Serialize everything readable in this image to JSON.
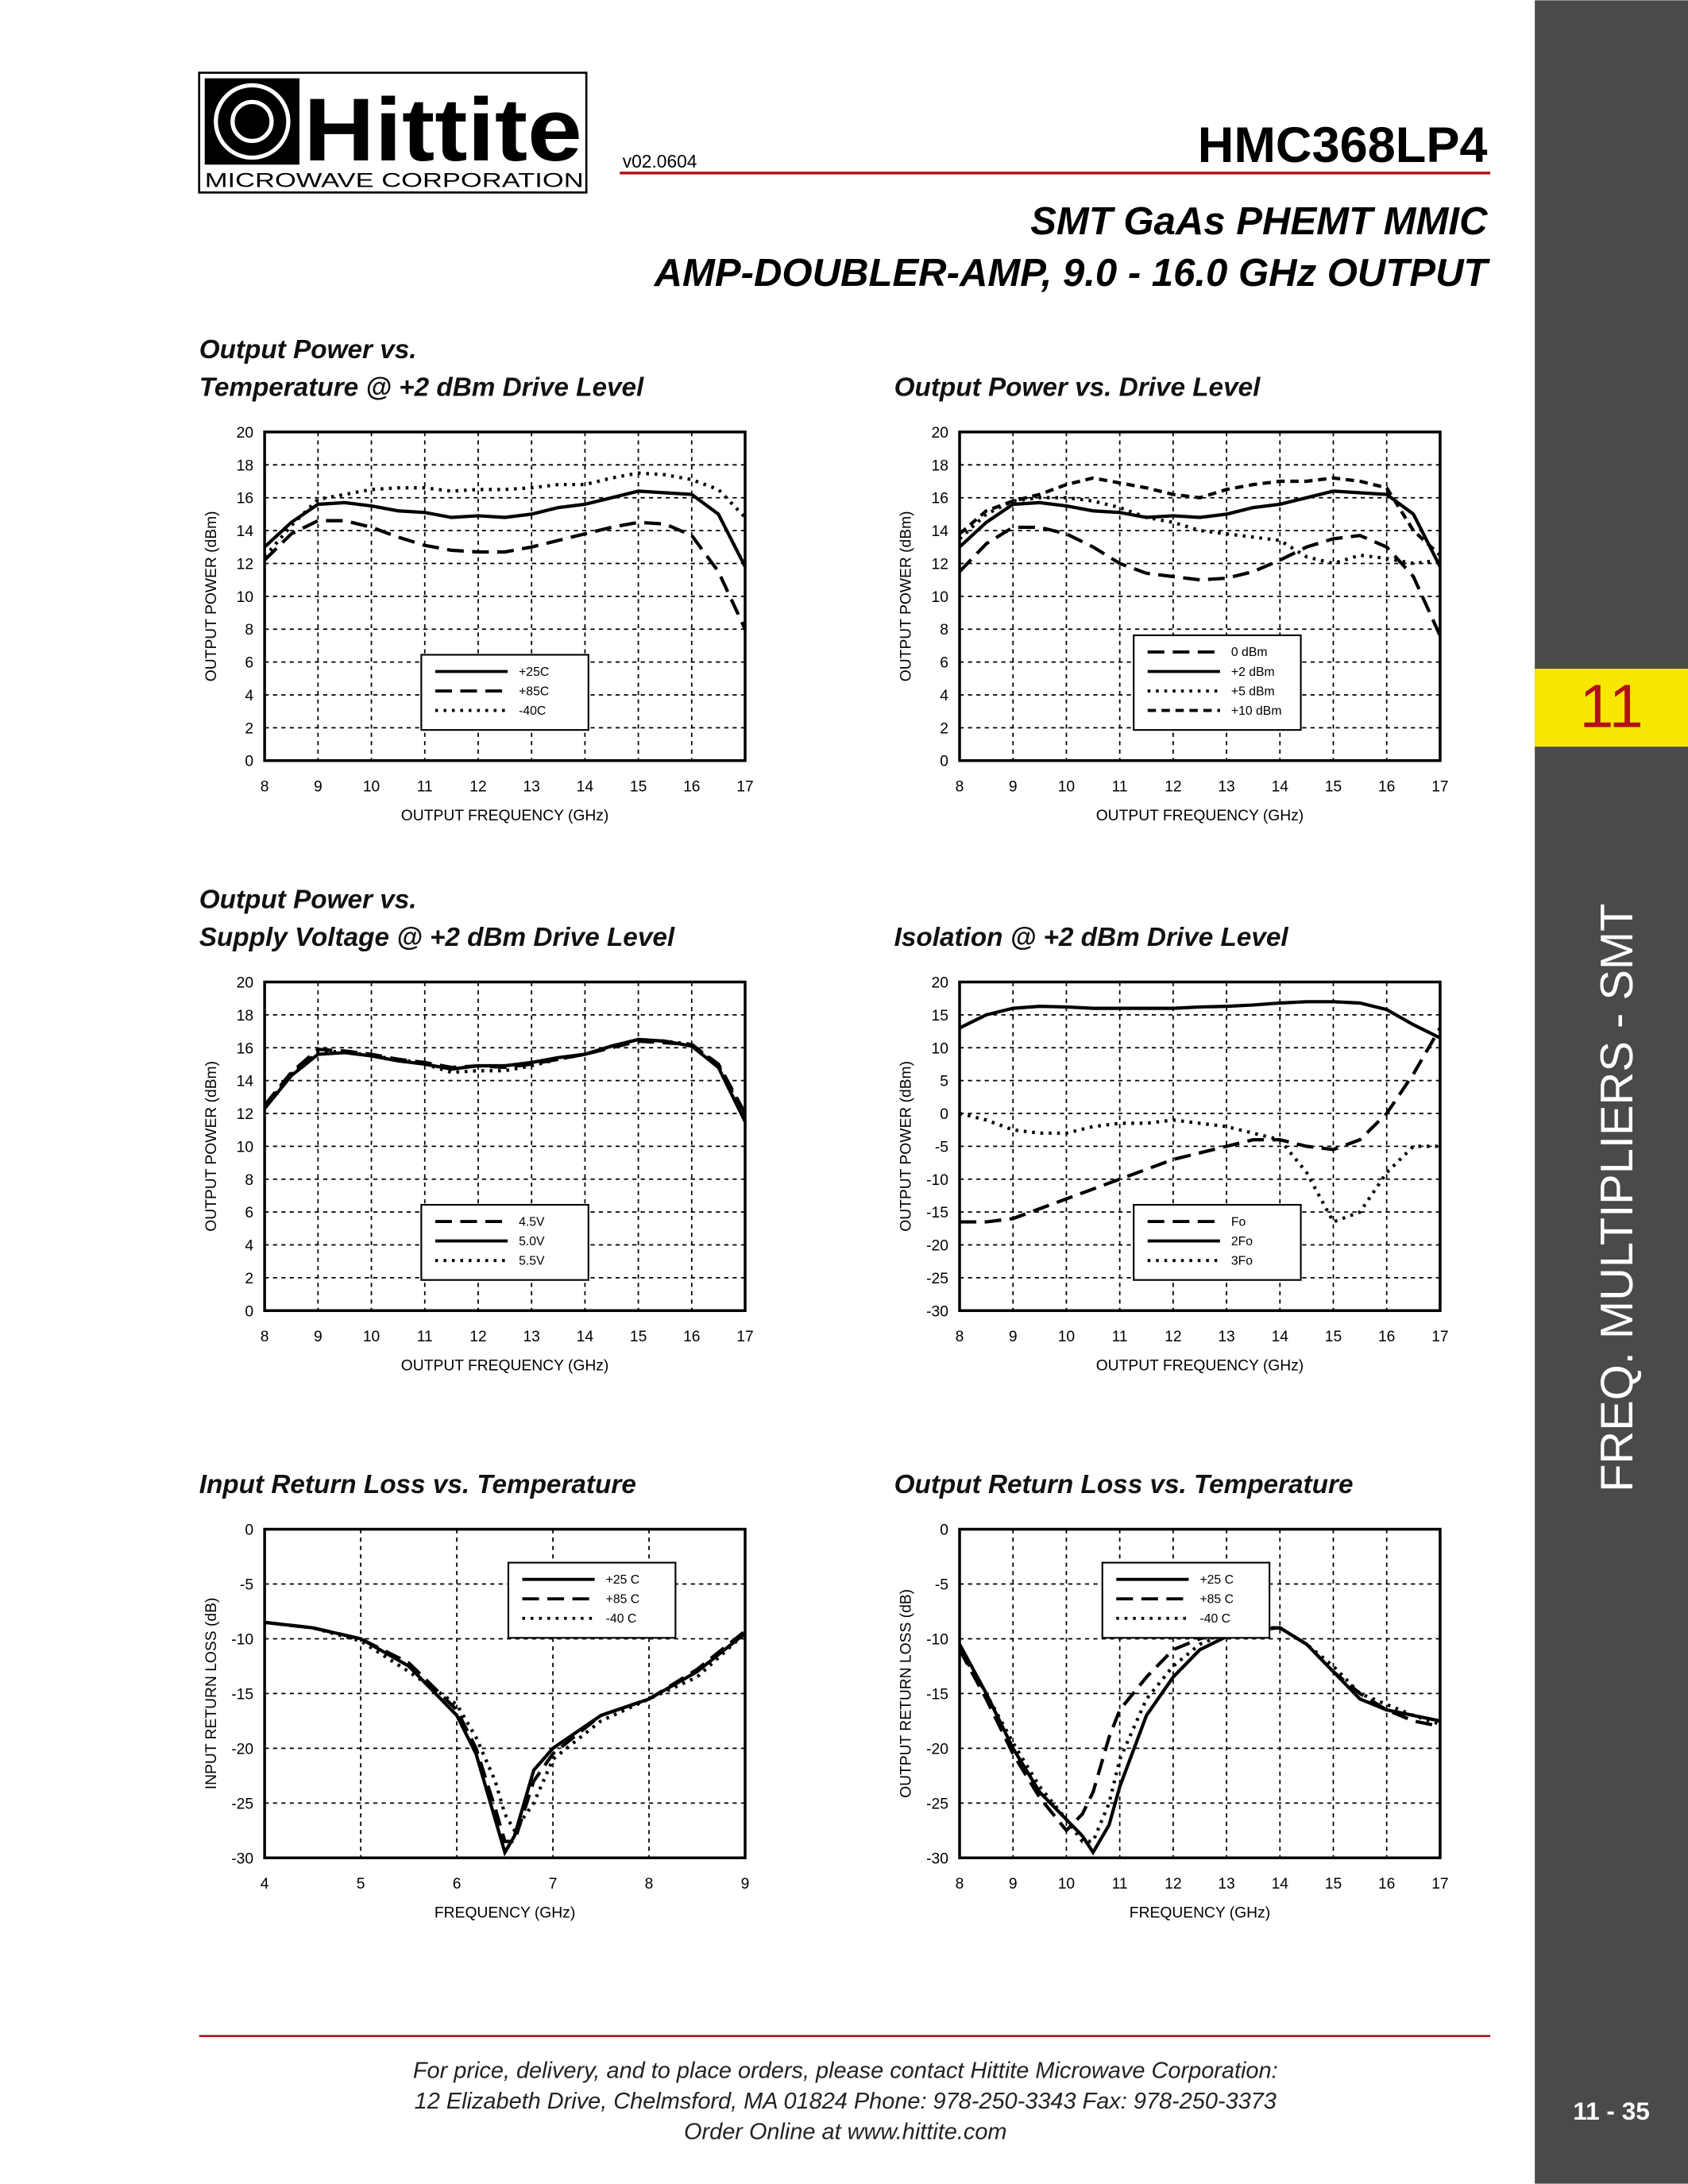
{
  "header": {
    "logo": "Hittite",
    "company": "MICROWAVE CORPORATION",
    "version": "v02.0604",
    "part": "HMC368LP4",
    "subtitle": [
      "SMT GaAs PHEMT MMIC",
      "AMP-DOUBLER-AMP, 9.0 - 16.0 GHz OUTPUT"
    ]
  },
  "sidebar": {
    "section": "11",
    "label": "FREQ. MULTIPLIERS - SMT",
    "page": "11 - 35"
  },
  "footer": [
    "For price, delivery, and to place orders, please contact Hittite Microwave Corporation:",
    "12 Elizabeth Drive, Chelmsford, MA 01824 Phone: 978-250-3343  Fax: 978-250-3373",
    "Order Online at www.hittite.com"
  ],
  "chart_data": [
    {
      "type": "line",
      "title": [
        "Output Power vs.",
        "Temperature @ +2 dBm Drive Level"
      ],
      "xlabel": "OUTPUT FREQUENCY (GHz)",
      "ylabel": "OUTPUT POWER (dBm)",
      "xlim": [
        8,
        17
      ],
      "xticks": [
        8,
        9,
        10,
        11,
        12,
        13,
        14,
        15,
        16,
        17
      ],
      "ylim": [
        0,
        20
      ],
      "yticks": [
        0,
        2,
        4,
        6,
        8,
        10,
        12,
        14,
        16,
        18,
        20
      ],
      "grid": true,
      "legend": "bottom-center",
      "x": [
        8,
        8.5,
        9,
        9.5,
        10,
        10.5,
        11,
        11.5,
        12,
        12.5,
        13,
        13.5,
        14,
        14.5,
        15,
        15.5,
        16,
        16.5,
        17
      ],
      "series": [
        {
          "name": "+25C",
          "color": "#000000",
          "dash": "solid",
          "values": [
            13,
            14.5,
            15.6,
            15.7,
            15.5,
            15.2,
            15.1,
            14.8,
            14.9,
            14.8,
            15.0,
            15.4,
            15.6,
            16.0,
            16.4,
            16.3,
            16.2,
            15.0,
            11.8
          ]
        },
        {
          "name": "+85C",
          "color": "#000000",
          "dash": "long-dash",
          "values": [
            12.2,
            13.8,
            14.6,
            14.6,
            14.2,
            13.6,
            13.1,
            12.8,
            12.7,
            12.7,
            13.0,
            13.4,
            13.8,
            14.2,
            14.5,
            14.4,
            13.7,
            11.5,
            8.0
          ]
        },
        {
          "name": "-40C",
          "color": "#000000",
          "dash": "dotted",
          "values": [
            12.4,
            14.3,
            15.9,
            16.2,
            16.5,
            16.6,
            16.6,
            16.4,
            16.5,
            16.5,
            16.6,
            16.8,
            16.8,
            17.2,
            17.5,
            17.4,
            17.1,
            16.5,
            14.8
          ]
        }
      ]
    },
    {
      "type": "line",
      "title": [
        "Output Power vs. Drive Level"
      ],
      "xlabel": "OUTPUT FREQUENCY (GHz)",
      "ylabel": "OUTPUT POWER (dBm)",
      "xlim": [
        8,
        17
      ],
      "xticks": [
        8,
        9,
        10,
        11,
        12,
        13,
        14,
        15,
        16,
        17
      ],
      "ylim": [
        0,
        20
      ],
      "yticks": [
        0,
        2,
        4,
        6,
        8,
        10,
        12,
        14,
        16,
        18,
        20
      ],
      "grid": true,
      "legend": "bottom-right",
      "x": [
        8,
        8.5,
        9,
        9.5,
        10,
        10.5,
        11,
        11.5,
        12,
        12.5,
        13,
        13.5,
        14,
        14.5,
        15,
        15.5,
        16,
        16.5,
        17
      ],
      "series": [
        {
          "name": "0 dBm",
          "color": "#000000",
          "dash": "long-dash",
          "values": [
            11.5,
            13.2,
            14.2,
            14.2,
            13.8,
            13.0,
            12.0,
            11.4,
            11.2,
            11.0,
            11.1,
            11.5,
            12.2,
            13.0,
            13.5,
            13.7,
            13.0,
            11.2,
            7.6
          ]
        },
        {
          "name": "+2 dBm",
          "color": "#000000",
          "dash": "solid",
          "values": [
            13,
            14.5,
            15.6,
            15.7,
            15.5,
            15.2,
            15.1,
            14.8,
            14.9,
            14.8,
            15.0,
            15.4,
            15.6,
            16.0,
            16.4,
            16.3,
            16.2,
            15.0,
            11.8
          ]
        },
        {
          "name": "+5 dBm",
          "color": "#000000",
          "dash": "dotted",
          "values": [
            13.5,
            15.0,
            15.8,
            16.0,
            16.0,
            15.8,
            15.4,
            14.8,
            14.5,
            14.0,
            13.8,
            13.6,
            13.4,
            12.4,
            12.0,
            12.5,
            12.3,
            12.0,
            12.2
          ]
        },
        {
          "name": "+10 dBm",
          "color": "#000000",
          "dash": "short-dash",
          "values": [
            13.8,
            15.2,
            15.8,
            16.2,
            16.8,
            17.2,
            16.9,
            16.6,
            16.2,
            16.0,
            16.5,
            16.8,
            17.0,
            17.0,
            17.2,
            17.0,
            16.6,
            14.0,
            12.5
          ]
        }
      ]
    },
    {
      "type": "line",
      "title": [
        "Output Power vs.",
        "Supply Voltage @ +2 dBm Drive Level"
      ],
      "xlabel": "OUTPUT FREQUENCY (GHz)",
      "ylabel": "OUTPUT POWER (dBm)",
      "xlim": [
        8,
        17
      ],
      "xticks": [
        8,
        9,
        10,
        11,
        12,
        13,
        14,
        15,
        16,
        17
      ],
      "ylim": [
        0,
        20
      ],
      "yticks": [
        0,
        2,
        4,
        6,
        8,
        10,
        12,
        14,
        16,
        18,
        20
      ],
      "grid": true,
      "legend": "bottom-center",
      "x": [
        8,
        8.5,
        9,
        9.5,
        10,
        10.5,
        11,
        11.5,
        12,
        12.5,
        13,
        13.5,
        14,
        14.5,
        15,
        15.5,
        16,
        16.5,
        17
      ],
      "series": [
        {
          "name": "4.5V",
          "color": "#000000",
          "dash": "long-dash",
          "values": [
            12.5,
            14.5,
            15.9,
            15.8,
            15.6,
            15.3,
            15.1,
            14.8,
            14.9,
            14.8,
            15.0,
            15.3,
            15.6,
            16.0,
            16.4,
            16.3,
            16.2,
            15.0,
            12.0
          ]
        },
        {
          "name": "5.0V",
          "color": "#000000",
          "dash": "solid",
          "values": [
            12.3,
            14.3,
            15.6,
            15.7,
            15.5,
            15.2,
            15.0,
            14.7,
            14.9,
            14.9,
            15.1,
            15.4,
            15.6,
            16.1,
            16.5,
            16.4,
            16.1,
            14.8,
            11.5
          ]
        },
        {
          "name": "5.5V",
          "color": "#000000",
          "dash": "dotted",
          "values": [
            12.4,
            14.4,
            15.7,
            15.8,
            15.5,
            15.3,
            15.0,
            14.5,
            14.6,
            14.6,
            14.9,
            15.3,
            15.6,
            16.1,
            16.5,
            16.4,
            16.2,
            14.9,
            11.8
          ]
        }
      ]
    },
    {
      "type": "line",
      "title": [
        "Isolation @ +2 dBm Drive Level"
      ],
      "xlabel": "OUTPUT FREQUENCY (GHz)",
      "ylabel": "OUTPUT POWER (dBm)",
      "xlim": [
        8,
        17
      ],
      "xticks": [
        8,
        9,
        10,
        11,
        12,
        13,
        14,
        15,
        16,
        17
      ],
      "ylim": [
        -30,
        20
      ],
      "yticks": [
        -30,
        -25,
        -20,
        -15,
        -10,
        -5,
        0,
        5,
        10,
        15,
        20
      ],
      "grid": true,
      "legend": "bottom-right",
      "x": [
        8,
        8.5,
        9,
        9.5,
        10,
        10.5,
        11,
        11.5,
        12,
        12.5,
        13,
        13.5,
        14,
        14.5,
        15,
        15.5,
        16,
        16.5,
        17
      ],
      "series": [
        {
          "name": "Fo",
          "color": "#000000",
          "dash": "long-dash",
          "values": [
            -16.5,
            -16.5,
            -16.0,
            -14.5,
            -13.0,
            -11.5,
            -10.0,
            -8.5,
            -7.0,
            -6.0,
            -5.0,
            -4.0,
            -4.0,
            -5.0,
            -5.5,
            -4.0,
            0.0,
            6.0,
            13.0
          ]
        },
        {
          "name": "2Fo",
          "color": "#000000",
          "dash": "solid",
          "values": [
            13.0,
            15.0,
            16.0,
            16.3,
            16.2,
            16.0,
            16.0,
            16.0,
            16.0,
            16.2,
            16.3,
            16.5,
            16.8,
            17.0,
            17.0,
            16.8,
            15.8,
            13.5,
            11.5
          ]
        },
        {
          "name": "3Fo",
          "color": "#000000",
          "dash": "dotted",
          "values": [
            0,
            -1.0,
            -2.5,
            -3.0,
            -3.0,
            -2.0,
            -1.5,
            -1.5,
            -1.0,
            -1.5,
            -2.0,
            -3.0,
            -4.0,
            -9.0,
            -16.5,
            -15.0,
            -9.0,
            -5.0,
            -5.0
          ]
        }
      ]
    },
    {
      "type": "line",
      "title": [
        "Input Return Loss vs. Temperature"
      ],
      "xlabel": "FREQUENCY (GHz)",
      "ylabel": "INPUT RETURN LOSS (dB)",
      "xlim": [
        4,
        9
      ],
      "xticks": [
        4,
        5,
        6,
        7,
        8,
        9
      ],
      "ylim": [
        -30,
        0
      ],
      "yticks": [
        -30,
        -25,
        -20,
        -15,
        -10,
        -5,
        0
      ],
      "grid": true,
      "legend": "top-right",
      "x": [
        4,
        4.5,
        5,
        5.5,
        6,
        6.2,
        6.4,
        6.5,
        6.6,
        6.8,
        7,
        7.5,
        8,
        8.5,
        9
      ],
      "series": [
        {
          "name": "+25 C",
          "color": "#000000",
          "dash": "solid",
          "values": [
            -8.5,
            -9,
            -10,
            -12.5,
            -17,
            -20.5,
            -26.5,
            -29.5,
            -28,
            -22,
            -20,
            -17,
            -15.5,
            -13,
            -9.5
          ]
        },
        {
          "name": "+85 C",
          "color": "#000000",
          "dash": "long-dash",
          "values": [
            -8.5,
            -9,
            -10,
            -12.2,
            -16.5,
            -20,
            -25.5,
            -28.5,
            -28.5,
            -23,
            -20.5,
            -17,
            -15.5,
            -12.8,
            -9.3
          ]
        },
        {
          "name": "-40 C",
          "color": "#000000",
          "dash": "dotted",
          "values": [
            -8.5,
            -9,
            -10.2,
            -13,
            -16,
            -19,
            -23,
            -26,
            -27.5,
            -25,
            -21,
            -17.5,
            -15.5,
            -13.5,
            -9.5
          ]
        }
      ]
    },
    {
      "type": "line",
      "title": [
        "Output Return Loss vs. Temperature"
      ],
      "xlabel": "FREQUENCY (GHz)",
      "ylabel": "OUTPUT RETURN LOSS (dB)",
      "xlim": [
        8,
        17
      ],
      "xticks": [
        8,
        9,
        10,
        11,
        12,
        13,
        14,
        15,
        16,
        17
      ],
      "ylim": [
        -30,
        0
      ],
      "yticks": [
        -30,
        -25,
        -20,
        -15,
        -10,
        -5,
        0
      ],
      "grid": true,
      "legend": "top-center",
      "x": [
        8,
        8.5,
        9,
        9.5,
        10,
        10.3,
        10.5,
        10.8,
        11,
        11.5,
        12,
        12.5,
        13,
        13.5,
        14,
        14.5,
        15,
        15.5,
        16,
        16.5,
        17
      ],
      "series": [
        {
          "name": "+25 C",
          "color": "#000000",
          "dash": "solid",
          "values": [
            -10.5,
            -15,
            -20,
            -24,
            -26.5,
            -28,
            -29.5,
            -27,
            -23.5,
            -17,
            -13.5,
            -11,
            -9.8,
            -9.2,
            -9.0,
            -10.5,
            -13,
            -15.5,
            -16.5,
            -17,
            -17.5
          ]
        },
        {
          "name": "+85 C",
          "color": "#000000",
          "dash": "long-dash",
          "values": [
            -11,
            -15.5,
            -20.5,
            -24.5,
            -27.5,
            -26,
            -24,
            -19,
            -16.5,
            -13.5,
            -11,
            -10,
            -9.3,
            -9,
            -9,
            -10.5,
            -13,
            -15,
            -16.5,
            -17.5,
            -18
          ]
        },
        {
          "name": "-40 C",
          "color": "#000000",
          "dash": "dotted",
          "values": [
            -11,
            -15,
            -19.5,
            -23.5,
            -26.5,
            -28.5,
            -28.5,
            -25,
            -21,
            -15.5,
            -12.5,
            -10.5,
            -9.5,
            -9,
            -9,
            -10.5,
            -12.5,
            -15,
            -16,
            -17,
            -17.8
          ]
        }
      ]
    }
  ]
}
